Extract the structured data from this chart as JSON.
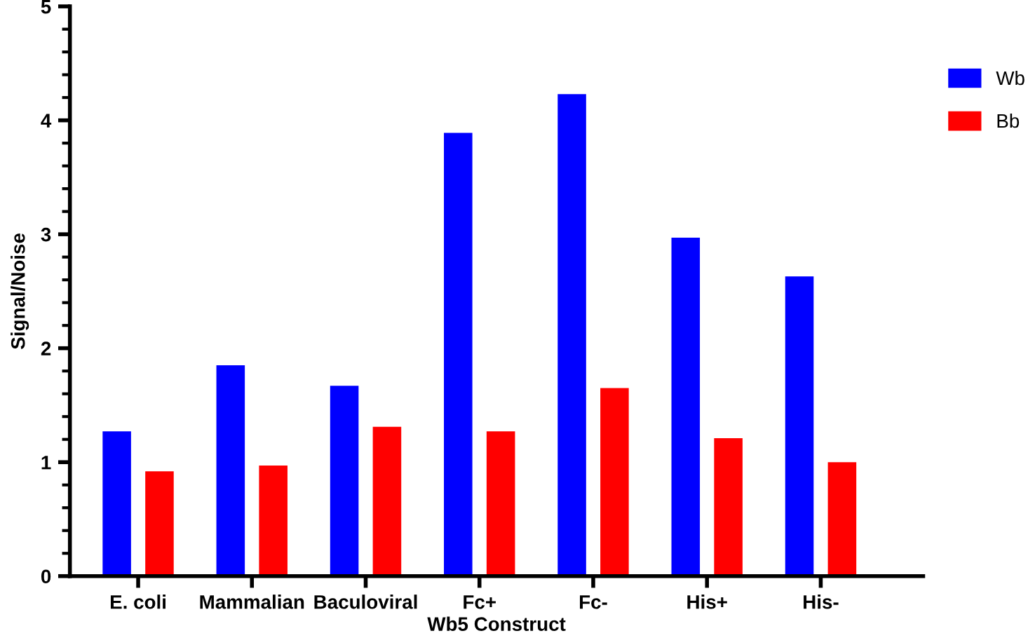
{
  "chart_data": {
    "type": "bar",
    "xlabel": "Wb5 Construct",
    "ylabel": "Signal/Noise",
    "categories": [
      "E. coli",
      "Mammalian",
      "Baculoviral",
      "Fc+",
      "Fc-",
      "His+",
      "His-"
    ],
    "series": [
      {
        "name": "Wb",
        "color": "#0000ff",
        "values": [
          1.27,
          1.85,
          1.67,
          3.89,
          4.23,
          2.97,
          2.63
        ]
      },
      {
        "name": "Bb",
        "color": "#ff0000",
        "values": [
          0.92,
          0.97,
          1.31,
          1.27,
          1.65,
          1.21,
          1.0
        ]
      }
    ],
    "ylim": [
      0,
      5
    ],
    "yticks": [
      0,
      1,
      2,
      3,
      4,
      5
    ],
    "grid": false,
    "legend": "top right"
  }
}
